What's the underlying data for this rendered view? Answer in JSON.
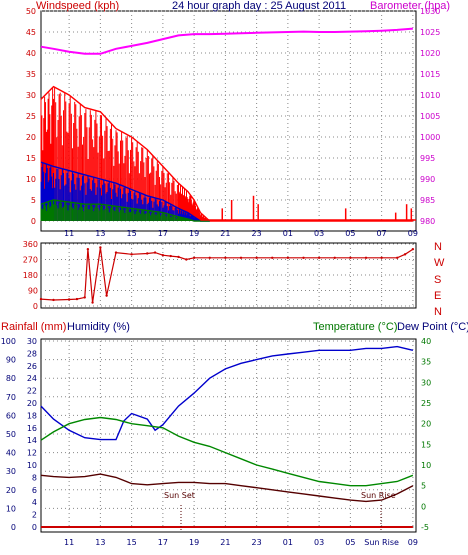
{
  "header": {
    "windspeed_label": "Windspeed (kph)",
    "title": "24 hour graph day : 25 August 2011",
    "barometer_label": "Barometer (hpa)"
  },
  "direction_labels": [
    "N",
    "W",
    "S",
    "E",
    "N"
  ],
  "bottom_header": {
    "rainfall_label": "Rainfall (mm)",
    "humidity_label": "Humidity (%)",
    "temperature_label": "Temperature (°C)",
    "dewpoint_label": "Dew Point (°C)"
  },
  "annotations": {
    "sunset": "Sun Set",
    "sunrise": "Sun Rise",
    "sunrise_axis": "Sun Rise"
  },
  "colors": {
    "wind_gust": "#ff0000",
    "wind_avg": "#0000cc",
    "wind_min": "#007700",
    "barometer": "#ff00ff",
    "direction": "#cc0000",
    "humidity": "#0000cc",
    "temperature": "#008800",
    "dewpoint": "#550000",
    "rain": "#cc0000",
    "red_label": "#cc0000",
    "magenta_label": "#cc00cc",
    "green_label": "#007700",
    "navy_label": "#000077"
  },
  "chart_data": [
    {
      "type": "line",
      "title": "24 hour graph day : 25 August 2011",
      "x_ticks": [
        "11",
        "13",
        "15",
        "17",
        "19",
        "21",
        "23",
        "01",
        "03",
        "05",
        "07",
        "09"
      ],
      "ylabel": "Windspeed (kph)",
      "ylim": [
        0,
        50
      ],
      "y_ticks": [
        0,
        5,
        10,
        15,
        20,
        25,
        30,
        35,
        40,
        45,
        50
      ],
      "y2label": "Barometer (hpa)",
      "y2lim": [
        980,
        1030
      ],
      "y2_ticks": [
        980,
        985,
        990,
        995,
        1000,
        1005,
        1010,
        1015,
        1020,
        1025,
        1030
      ],
      "series": [
        {
          "name": "gust",
          "x": [
            9.2,
            10,
            11,
            12,
            13,
            14,
            15,
            16,
            17,
            18,
            18.6,
            19,
            19.4,
            20,
            21,
            22,
            23,
            24,
            25,
            26,
            27,
            28,
            29,
            30,
            31,
            32,
            33
          ],
          "values": [
            29,
            32,
            30,
            27,
            26,
            22,
            20,
            17,
            13,
            9,
            7,
            5,
            2,
            0,
            0,
            0,
            0,
            0,
            0,
            0,
            0,
            0,
            0,
            0,
            0,
            0,
            0
          ]
        },
        {
          "name": "average",
          "x": [
            9.2,
            10,
            11,
            12,
            13,
            14,
            15,
            16,
            17,
            18,
            18.6,
            19,
            19.4,
            20
          ],
          "values": [
            14,
            13,
            12,
            11,
            10,
            9,
            7.5,
            6,
            5,
            3,
            2,
            1,
            0,
            0
          ]
        },
        {
          "name": "minimum",
          "x": [
            9.2,
            10,
            11,
            12,
            13,
            14,
            15,
            16,
            17,
            18,
            18.6,
            19,
            19.4,
            20
          ],
          "values": [
            4,
            5,
            4.5,
            4,
            4,
            3.5,
            3,
            2.5,
            2,
            1,
            0.5,
            0,
            0,
            0
          ]
        },
        {
          "name": "barometer",
          "x": [
            9.2,
            10,
            11,
            12,
            13,
            14,
            15,
            16,
            17,
            18,
            19,
            20,
            21,
            22,
            23,
            24,
            25,
            26,
            27,
            28,
            29,
            30,
            31,
            32,
            33
          ],
          "values": [
            1021.5,
            1021,
            1020.3,
            1019.8,
            1019.8,
            1021,
            1021.7,
            1022.4,
            1023.3,
            1024.2,
            1024.5,
            1024.5,
            1024.6,
            1024.7,
            1024.8,
            1024.9,
            1025,
            1025.1,
            1025,
            1025,
            1025.1,
            1025.2,
            1025.3,
            1025.5,
            1025.8
          ]
        }
      ],
      "rain_gust_spikes": [
        [
          20.8,
          3
        ],
        [
          21.4,
          5
        ],
        [
          22.8,
          6
        ],
        [
          23.1,
          4
        ],
        [
          28.7,
          3
        ],
        [
          31.9,
          2
        ],
        [
          32.6,
          4
        ],
        [
          32.9,
          3
        ]
      ]
    },
    {
      "type": "scatter",
      "ylim": [
        0,
        360
      ],
      "y_ticks": [
        0,
        90,
        180,
        270,
        360
      ],
      "x": [
        9.2,
        10,
        11,
        11.5,
        12,
        12.2,
        12.5,
        13,
        13.4,
        14,
        15,
        16,
        16.5,
        17,
        17.5,
        18,
        18.5,
        19,
        20,
        21,
        22,
        23,
        24,
        25,
        26,
        27,
        28,
        29,
        30,
        31,
        32,
        32.5,
        33
      ],
      "values": [
        40,
        35,
        38,
        40,
        50,
        330,
        20,
        340,
        60,
        310,
        300,
        305,
        310,
        295,
        290,
        285,
        270,
        280,
        280,
        280,
        280,
        280,
        280,
        280,
        280,
        280,
        280,
        280,
        280,
        280,
        280,
        300,
        330
      ]
    },
    {
      "type": "line",
      "ylabel": "Rainfall (mm)",
      "ylim": [
        0,
        100
      ],
      "y_ticks": [
        0,
        10,
        20,
        30,
        40,
        50,
        60,
        70,
        80,
        90,
        100
      ],
      "humidity_ticks": [
        0,
        2,
        4,
        6,
        8,
        10,
        12,
        14,
        16,
        18,
        20,
        22,
        24,
        26,
        28,
        30
      ],
      "y2label": "Temperature (°C)",
      "y2lim": [
        -5,
        40
      ],
      "y2_ticks": [
        -5,
        0,
        5,
        10,
        15,
        20,
        25,
        30,
        35,
        40
      ],
      "series": [
        {
          "name": "Humidity (%)",
          "x": [
            9.2,
            10,
            11,
            12,
            13,
            14,
            14.5,
            15,
            16,
            16.5,
            17,
            18,
            19,
            20,
            21,
            22,
            23,
            24,
            25,
            26,
            27,
            28,
            29,
            30,
            31,
            32,
            33
          ],
          "values": [
            65,
            58,
            52,
            48,
            47,
            47,
            57,
            61,
            58,
            52,
            55,
            65,
            72,
            80,
            85,
            88,
            90,
            92,
            93,
            94,
            95,
            95,
            95,
            96,
            96,
            97,
            95
          ]
        },
        {
          "name": "Temperature (°C)",
          "x": [
            9.2,
            10,
            11,
            12,
            13,
            14,
            15,
            16,
            17,
            18,
            19,
            20,
            21,
            22,
            23,
            24,
            25,
            26,
            27,
            28,
            29,
            30,
            31,
            32,
            33
          ],
          "values": [
            16,
            18,
            20,
            21,
            21.5,
            21,
            20,
            19.5,
            19,
            17,
            15.5,
            14.5,
            13,
            11.5,
            10,
            9,
            8,
            7,
            6,
            5.5,
            5,
            5,
            5.5,
            6,
            7.5
          ]
        },
        {
          "name": "Dew Point (°C)",
          "x": [
            9.2,
            10,
            11,
            12,
            13,
            14,
            15,
            16,
            17,
            18,
            19,
            20,
            21,
            22,
            23,
            24,
            25,
            26,
            27,
            28,
            29,
            30,
            31,
            32,
            33
          ],
          "values": [
            7.5,
            7.2,
            7,
            7.2,
            7.8,
            7,
            5.5,
            5.2,
            5.5,
            5.8,
            5.8,
            5.5,
            5.5,
            5,
            4.5,
            4,
            3.5,
            3,
            2.5,
            2,
            1.5,
            1.2,
            1.5,
            3,
            5
          ]
        },
        {
          "name": "rain",
          "x": [
            9.2,
            33
          ],
          "values": [
            0,
            0
          ]
        }
      ]
    }
  ]
}
